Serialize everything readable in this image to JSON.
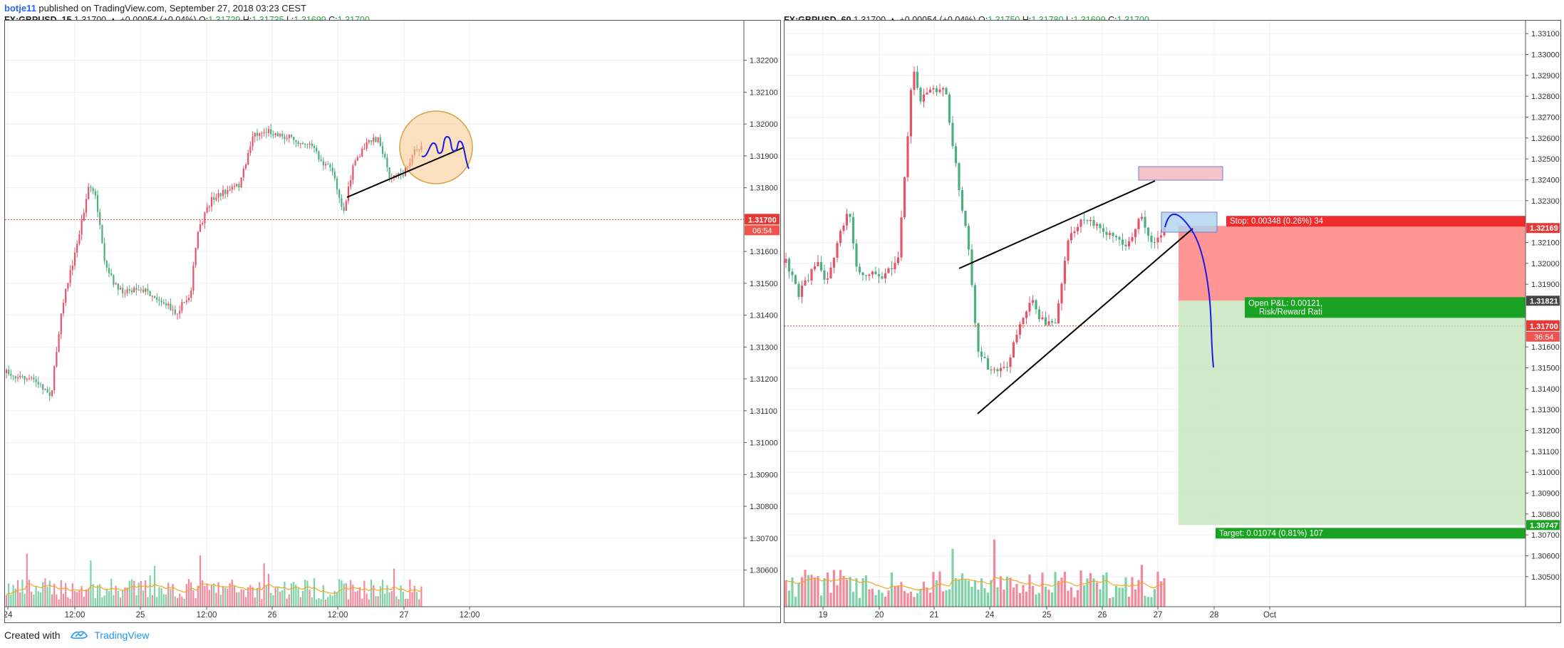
{
  "publish": {
    "user": "botje11",
    "text": "published on TradingView.com, September 27, 2018 03:23 CEST"
  },
  "left": {
    "legend": {
      "symbol": "FX:GBPUSD, 15",
      "last": "1.31700",
      "change": "▲ +0.00054 (+0.04%)",
      "o_label": "O:",
      "o": "1.31729",
      "h_label": "H:",
      "h": "1.31735",
      "l_label": "L:",
      "l": "1.31699",
      "c_label": "C:",
      "c": "1.31700"
    },
    "price_ticks": [
      "1.32200",
      "1.32100",
      "1.32000",
      "1.31900",
      "1.31800",
      "1.31600",
      "1.31500",
      "1.31400",
      "1.31300",
      "1.31200",
      "1.31100",
      "1.31000",
      "1.30900",
      "1.30800",
      "1.30700",
      "1.30600"
    ],
    "price_tick_values": [
      1.322,
      1.321,
      1.32,
      1.319,
      1.318,
      1.316,
      1.315,
      1.314,
      1.313,
      1.312,
      1.311,
      1.31,
      1.309,
      1.308,
      1.307,
      1.306
    ],
    "y_range": [
      1.30552,
      1.32235
    ],
    "time_ticks": [
      "24",
      "12:00",
      "25",
      "12:00",
      "26",
      "12:00",
      "27",
      "12:00"
    ],
    "current_price": "1.31700",
    "countdown": "06:54",
    "accent_colors": {
      "up": "#4caf7d",
      "down": "#e8536a",
      "ma": "#f5a623",
      "marker": "#1a1aff"
    }
  },
  "right": {
    "legend": {
      "symbol": "FX:GBPUSD, 60",
      "last": "1.31700",
      "change": "▲ +0.00054 (+0.04%)",
      "o_label": "O:",
      "o": "1.31750",
      "h_label": "H:",
      "h": "1.31780",
      "l_label": "L:",
      "l": "1.31699",
      "c_label": "C:",
      "c": "1.31700"
    },
    "price_ticks": [
      "1.33100",
      "1.33000",
      "1.32900",
      "1.32800",
      "1.32700",
      "1.32600",
      "1.32500",
      "1.32400",
      "1.32300",
      "1.32100",
      "1.32000",
      "1.31900",
      "1.31600",
      "1.31500",
      "1.31400",
      "1.31300",
      "1.31200",
      "1.31100",
      "1.31000",
      "1.30900",
      "1.30800",
      "1.30700",
      "1.30600",
      "1.30500"
    ],
    "price_tick_values": [
      1.331,
      1.33,
      1.329,
      1.328,
      1.327,
      1.326,
      1.325,
      1.324,
      1.323,
      1.321,
      1.32,
      1.319,
      1.316,
      1.315,
      1.314,
      1.313,
      1.312,
      1.311,
      1.31,
      1.309,
      1.308,
      1.307,
      1.306,
      1.305
    ],
    "y_range": [
      1.30414,
      1.33138
    ],
    "time_ticks": [
      "19",
      "20",
      "21",
      "24",
      "25",
      "26",
      "27",
      "28",
      "Oct"
    ],
    "current_price": "1.31700",
    "countdown": "36:54",
    "stop_price": "1.32169",
    "entry_price": "1.31821",
    "target_price": "1.30747",
    "stop_label": "Stop: 0.00348 (0.26%) 34",
    "pnl_label": "Open P&L: 0.00121,",
    "rr_label": "Risk/Reward Rati",
    "target_label": "Target: 0.01074 (0.81%) 107"
  },
  "footer": {
    "created_with": "Created with",
    "brand": "TradingView"
  }
}
